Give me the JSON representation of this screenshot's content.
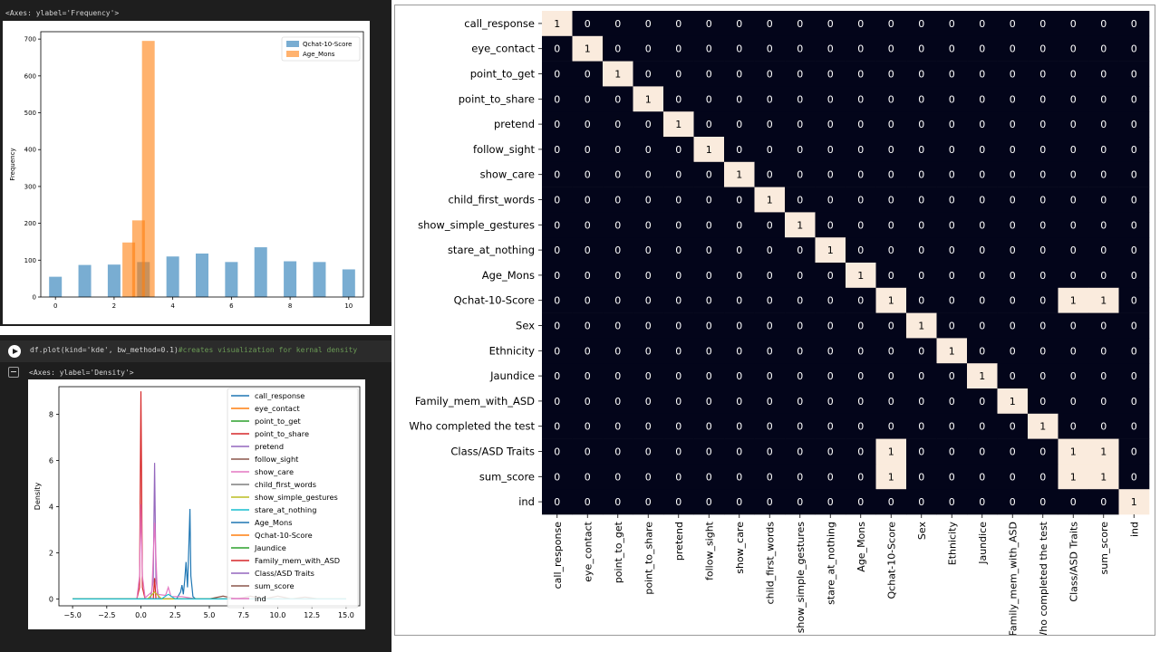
{
  "notebook": {
    "hist_axes_label": "<Axes: ylabel='Frequency'>",
    "code_line": "df.plot(kind='kde', bw_method=0.1)",
    "code_comment": "#creates visualization for kernal density",
    "kde_axes_label": "<Axes: ylabel='Density'>"
  },
  "colors": {
    "notebook_bg": "#1e1e1e",
    "hist_blue": "#1f77b4",
    "hist_orange": "#ff7f0e",
    "heatmap_dark": "#03051a",
    "heatmap_light": "#faebdd"
  },
  "chart_data": [
    {
      "type": "bar",
      "chart": "histogram",
      "ylabel": "Frequency",
      "xlim": [
        -0.5,
        10.5
      ],
      "ylim": [
        0,
        720
      ],
      "xticks": [
        0,
        2,
        4,
        6,
        8,
        10
      ],
      "yticks": [
        0,
        100,
        200,
        300,
        400,
        500,
        600,
        700
      ],
      "legend_position": "top-right",
      "series": [
        {
          "name": "Qchat-10-Score",
          "color": "#1f77b4",
          "bins": [
            [
              0,
              55
            ],
            [
              1,
              87
            ],
            [
              2,
              88
            ],
            [
              3,
              95
            ],
            [
              4,
              110
            ],
            [
              5,
              118
            ],
            [
              6,
              95
            ],
            [
              7,
              135
            ],
            [
              8,
              97
            ],
            [
              9,
              95
            ],
            [
              10,
              75
            ]
          ]
        },
        {
          "name": "Age_Mons",
          "color": "#ff7f0e",
          "bins": [
            [
              2.5,
              148
            ],
            [
              2.833,
              208
            ],
            [
              3.167,
              695
            ]
          ]
        }
      ]
    },
    {
      "type": "line",
      "chart": "kde",
      "ylabel": "Density",
      "xlim": [
        -6,
        16
      ],
      "ylim": [
        -0.3,
        9.2
      ],
      "xticks": [
        -5.0,
        -2.5,
        0.0,
        2.5,
        5.0,
        7.5,
        10.0,
        12.5,
        15.0
      ],
      "xtick_labels": [
        "−5.0",
        "−2.5",
        "0.0",
        "2.5",
        "5.0",
        "7.5",
        "10.0",
        "12.5",
        "15.0"
      ],
      "yticks": [
        0,
        2,
        4,
        6,
        8
      ],
      "legend_position": "top-right",
      "legend": [
        "call_response",
        "eye_contact",
        "point_to_get",
        "point_to_share",
        "pretend",
        "follow_sight",
        "show_care",
        "child_first_words",
        "show_simple_gestures",
        "stare_at_nothing",
        "Age_Mons",
        "Qchat-10-Score",
        "Jaundice",
        "Family_mem_with_ASD",
        "Class/ASD Traits",
        "sum_score",
        "ind"
      ],
      "series": [
        {
          "name": "Qchat-10-Score",
          "color": "#1f77b4",
          "points": [
            [
              -5,
              0
            ],
            [
              2.6,
              0
            ],
            [
              2.9,
              0.3
            ],
            [
              3.0,
              0.6
            ],
            [
              3.1,
              0.2
            ],
            [
              3.2,
              0.8
            ],
            [
              3.3,
              1.6
            ],
            [
              3.4,
              0.5
            ],
            [
              3.5,
              2.3
            ],
            [
              3.58,
              3.9
            ],
            [
              3.65,
              1.0
            ],
            [
              3.8,
              0.1
            ],
            [
              4.0,
              0
            ],
            [
              15,
              0
            ]
          ]
        },
        {
          "name": "Family_mem_with_ASD",
          "color": "#d62728",
          "points": [
            [
              -5,
              0
            ],
            [
              -0.3,
              0
            ],
            [
              -0.1,
              0.5
            ],
            [
              0.0,
              9.0
            ],
            [
              0.1,
              0.5
            ],
            [
              0.3,
              0
            ],
            [
              0.9,
              0
            ],
            [
              1.0,
              0.9
            ],
            [
              1.1,
              0
            ],
            [
              15,
              0
            ]
          ]
        },
        {
          "name": "Class/ASD Traits",
          "color": "#9467bd",
          "points": [
            [
              -5,
              0
            ],
            [
              0.7,
              0
            ],
            [
              0.9,
              0.8
            ],
            [
              1.0,
              5.9
            ],
            [
              1.1,
              0.8
            ],
            [
              1.3,
              0
            ],
            [
              15,
              0
            ]
          ]
        },
        {
          "name": "ind",
          "color": "#e377c2",
          "points": [
            [
              -5,
              0
            ],
            [
              -0.3,
              0
            ],
            [
              -0.1,
              1.0
            ],
            [
              0.0,
              4.1
            ],
            [
              0.1,
              1.0
            ],
            [
              0.3,
              0.05
            ],
            [
              0.8,
              0.3
            ],
            [
              1.0,
              3.3
            ],
            [
              1.2,
              0.2
            ],
            [
              1.8,
              0.15
            ],
            [
              2.0,
              0.5
            ],
            [
              2.2,
              0.1
            ],
            [
              3.0,
              0.1
            ],
            [
              4.0,
              0
            ],
            [
              15,
              0
            ]
          ]
        },
        {
          "name": "sum_score",
          "color": "#8c564b",
          "points": [
            [
              -5,
              0
            ],
            [
              5.0,
              0
            ],
            [
              6.0,
              0.12
            ],
            [
              7.0,
              0
            ],
            [
              8.0,
              0.12
            ],
            [
              9.0,
              0
            ],
            [
              10.0,
              0.12
            ],
            [
              11.0,
              0
            ],
            [
              12.0,
              0.08
            ],
            [
              13.0,
              0
            ],
            [
              15,
              0
            ]
          ]
        },
        {
          "name": "show_simple_gestures",
          "color": "#bcbd22",
          "points": [
            [
              -5,
              0
            ],
            [
              0.5,
              0
            ],
            [
              1.0,
              0.3
            ],
            [
              1.5,
              0
            ],
            [
              15,
              0
            ]
          ]
        },
        {
          "name": "stare_at_nothing",
          "color": "#17becf",
          "points": [
            [
              -5,
              0
            ],
            [
              1.5,
              0
            ],
            [
              2.0,
              0.2
            ],
            [
              2.5,
              0
            ],
            [
              15,
              0
            ]
          ]
        }
      ]
    },
    {
      "type": "heatmap",
      "chart": "correlation",
      "rows": [
        "call_response",
        "eye_contact",
        "point_to_get",
        "point_to_share",
        "pretend",
        "follow_sight",
        "show_care",
        "child_first_words",
        "show_simple_gestures",
        "stare_at_nothing",
        "Age_Mons",
        "Qchat-10-Score",
        "Sex",
        "Ethnicity",
        "Jaundice",
        "Family_mem_with_ASD",
        "Who completed the test",
        "Class/ASD Traits ",
        "sum_score",
        "ind"
      ],
      "columns": [
        "call_response",
        "eye_contact",
        "point_to_get",
        "point_to_share",
        "pretend",
        "follow_sight",
        "show_care",
        "child_first_words",
        "show_simple_gestures",
        "stare_at_nothing",
        "Age_Mons",
        "Qchat-10-Score",
        "Sex",
        "Ethnicity",
        "Jaundice",
        "Family_mem_with_ASD",
        "Who completed the test",
        "Class/ASD Traits",
        "sum_score",
        "ind"
      ],
      "values": [
        [
          1,
          0,
          0,
          0,
          0,
          0,
          0,
          0,
          0,
          0,
          0,
          0,
          0,
          0,
          0,
          0,
          0,
          0,
          0,
          0
        ],
        [
          0,
          1,
          0,
          0,
          0,
          0,
          0,
          0,
          0,
          0,
          0,
          0,
          0,
          0,
          0,
          0,
          0,
          0,
          0,
          0
        ],
        [
          0,
          0,
          1,
          0,
          0,
          0,
          0,
          0,
          0,
          0,
          0,
          0,
          0,
          0,
          0,
          0,
          0,
          0,
          0,
          0
        ],
        [
          0,
          0,
          0,
          1,
          0,
          0,
          0,
          0,
          0,
          0,
          0,
          0,
          0,
          0,
          0,
          0,
          0,
          0,
          0,
          0
        ],
        [
          0,
          0,
          0,
          0,
          1,
          0,
          0,
          0,
          0,
          0,
          0,
          0,
          0,
          0,
          0,
          0,
          0,
          0,
          0,
          0
        ],
        [
          0,
          0,
          0,
          0,
          0,
          1,
          0,
          0,
          0,
          0,
          0,
          0,
          0,
          0,
          0,
          0,
          0,
          0,
          0,
          0
        ],
        [
          0,
          0,
          0,
          0,
          0,
          0,
          1,
          0,
          0,
          0,
          0,
          0,
          0,
          0,
          0,
          0,
          0,
          0,
          0,
          0
        ],
        [
          0,
          0,
          0,
          0,
          0,
          0,
          0,
          1,
          0,
          0,
          0,
          0,
          0,
          0,
          0,
          0,
          0,
          0,
          0,
          0
        ],
        [
          0,
          0,
          0,
          0,
          0,
          0,
          0,
          0,
          1,
          0,
          0,
          0,
          0,
          0,
          0,
          0,
          0,
          0,
          0,
          0
        ],
        [
          0,
          0,
          0,
          0,
          0,
          0,
          0,
          0,
          0,
          1,
          0,
          0,
          0,
          0,
          0,
          0,
          0,
          0,
          0,
          0
        ],
        [
          0,
          0,
          0,
          0,
          0,
          0,
          0,
          0,
          0,
          0,
          1,
          0,
          0,
          0,
          0,
          0,
          0,
          0,
          0,
          0
        ],
        [
          0,
          0,
          0,
          0,
          0,
          0,
          0,
          0,
          0,
          0,
          0,
          1,
          0,
          0,
          0,
          0,
          0,
          1,
          1,
          0
        ],
        [
          0,
          0,
          0,
          0,
          0,
          0,
          0,
          0,
          0,
          0,
          0,
          0,
          1,
          0,
          0,
          0,
          0,
          0,
          0,
          0
        ],
        [
          0,
          0,
          0,
          0,
          0,
          0,
          0,
          0,
          0,
          0,
          0,
          0,
          0,
          1,
          0,
          0,
          0,
          0,
          0,
          0
        ],
        [
          0,
          0,
          0,
          0,
          0,
          0,
          0,
          0,
          0,
          0,
          0,
          0,
          0,
          0,
          1,
          0,
          0,
          0,
          0,
          0
        ],
        [
          0,
          0,
          0,
          0,
          0,
          0,
          0,
          0,
          0,
          0,
          0,
          0,
          0,
          0,
          0,
          1,
          0,
          0,
          0,
          0
        ],
        [
          0,
          0,
          0,
          0,
          0,
          0,
          0,
          0,
          0,
          0,
          0,
          0,
          0,
          0,
          0,
          0,
          1,
          0,
          0,
          0
        ],
        [
          0,
          0,
          0,
          0,
          0,
          0,
          0,
          0,
          0,
          0,
          0,
          1,
          0,
          0,
          0,
          0,
          0,
          1,
          1,
          0
        ],
        [
          0,
          0,
          0,
          0,
          0,
          0,
          0,
          0,
          0,
          0,
          0,
          1,
          0,
          0,
          0,
          0,
          0,
          1,
          1,
          0
        ],
        [
          0,
          0,
          0,
          0,
          0,
          0,
          0,
          0,
          0,
          0,
          0,
          0,
          0,
          0,
          0,
          0,
          0,
          0,
          0,
          1
        ]
      ]
    }
  ]
}
